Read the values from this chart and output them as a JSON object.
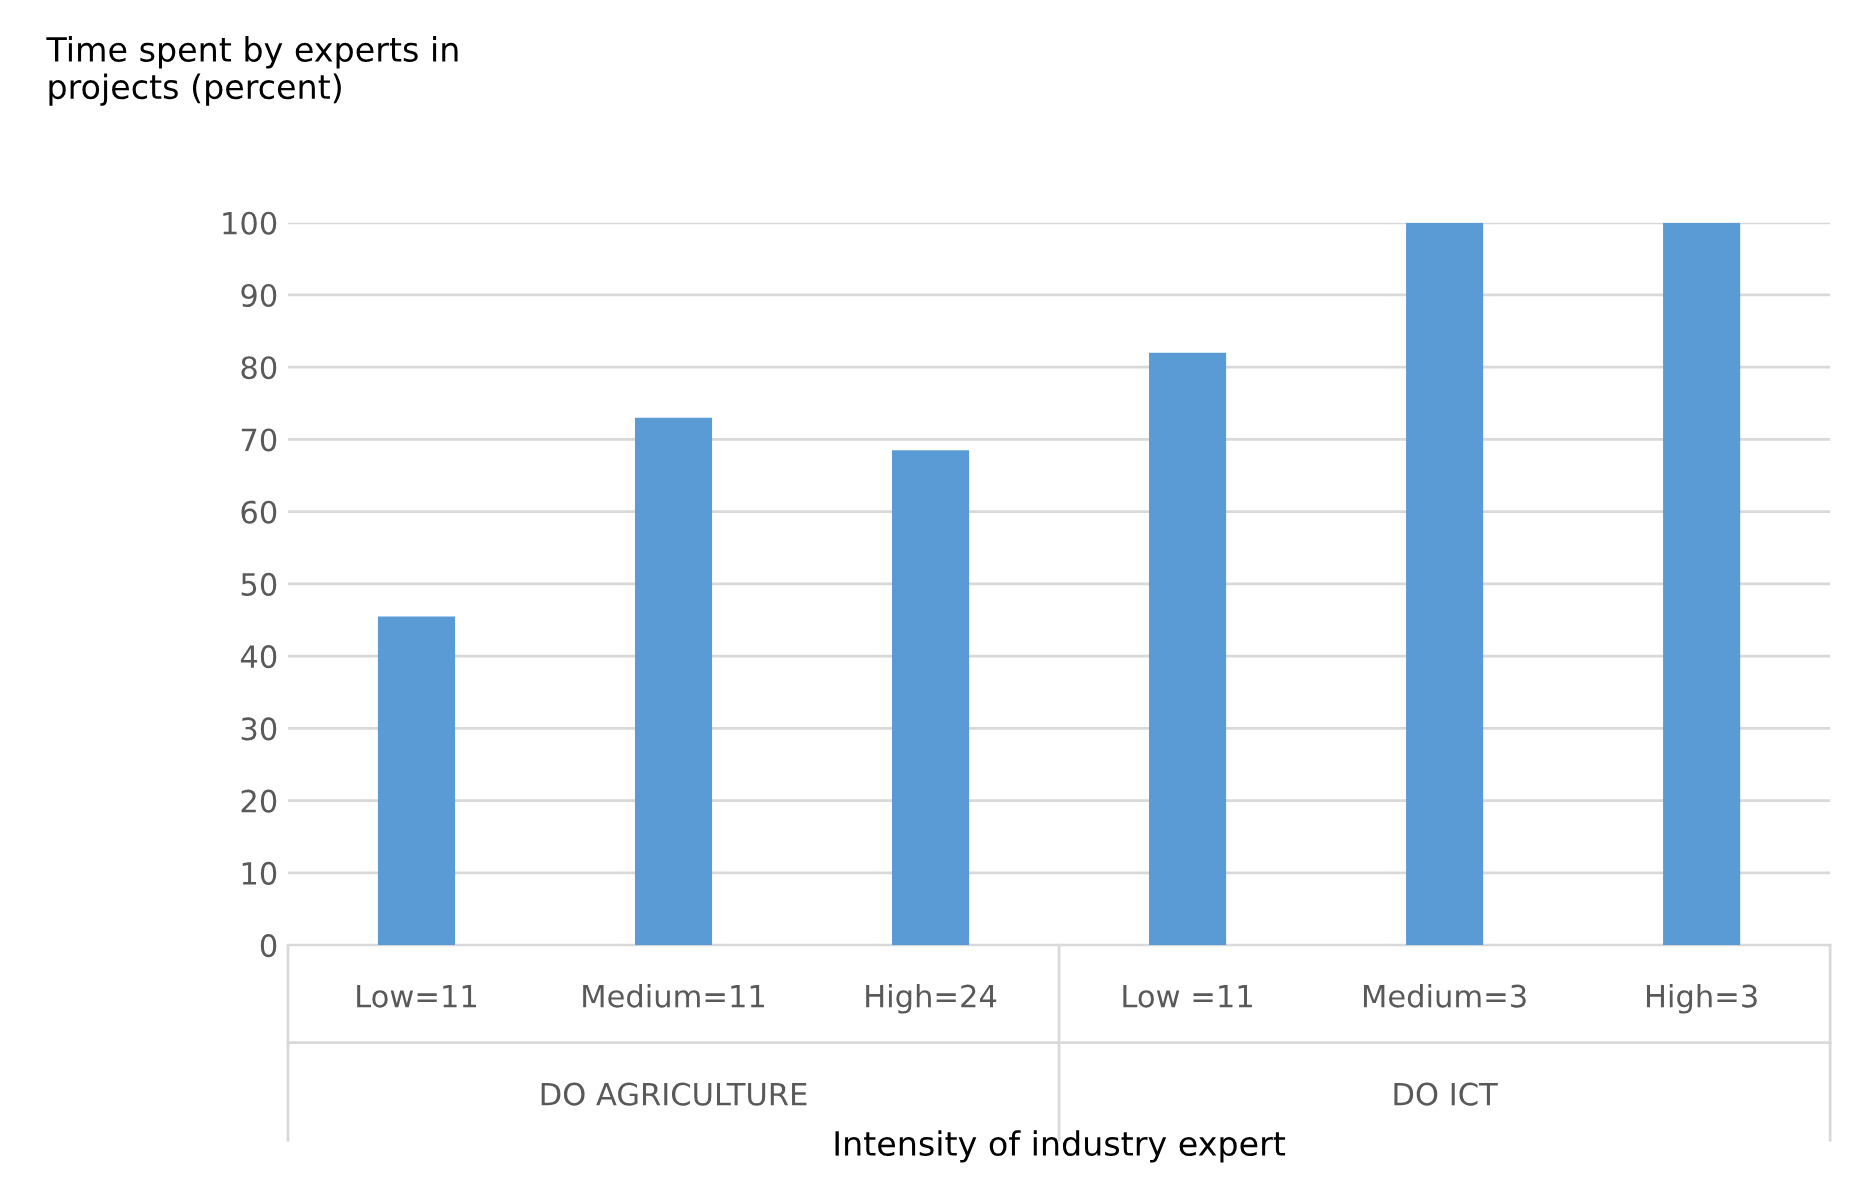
{
  "chart_data": {
    "type": "bar",
    "title": "Time spent by experts in\nprojects (percent)",
    "xlabel": "Intensity of industry expert",
    "categories": [
      "Low=11",
      "Medium=11",
      "High=24",
      "Low =11",
      "Medium=3",
      "High=3"
    ],
    "values": [
      45.5,
      73,
      68.5,
      82,
      100,
      100
    ],
    "color": "#5b9bd5",
    "annotations": [
      "DO AGRICULTURE",
      "DO ICT"
    ],
    "ylim": [
      0,
      100
    ],
    "yticks": [
      0,
      10,
      20,
      30,
      40,
      50,
      60,
      70,
      80,
      90,
      100
    ],
    "grid": "y",
    "legend": false
  }
}
